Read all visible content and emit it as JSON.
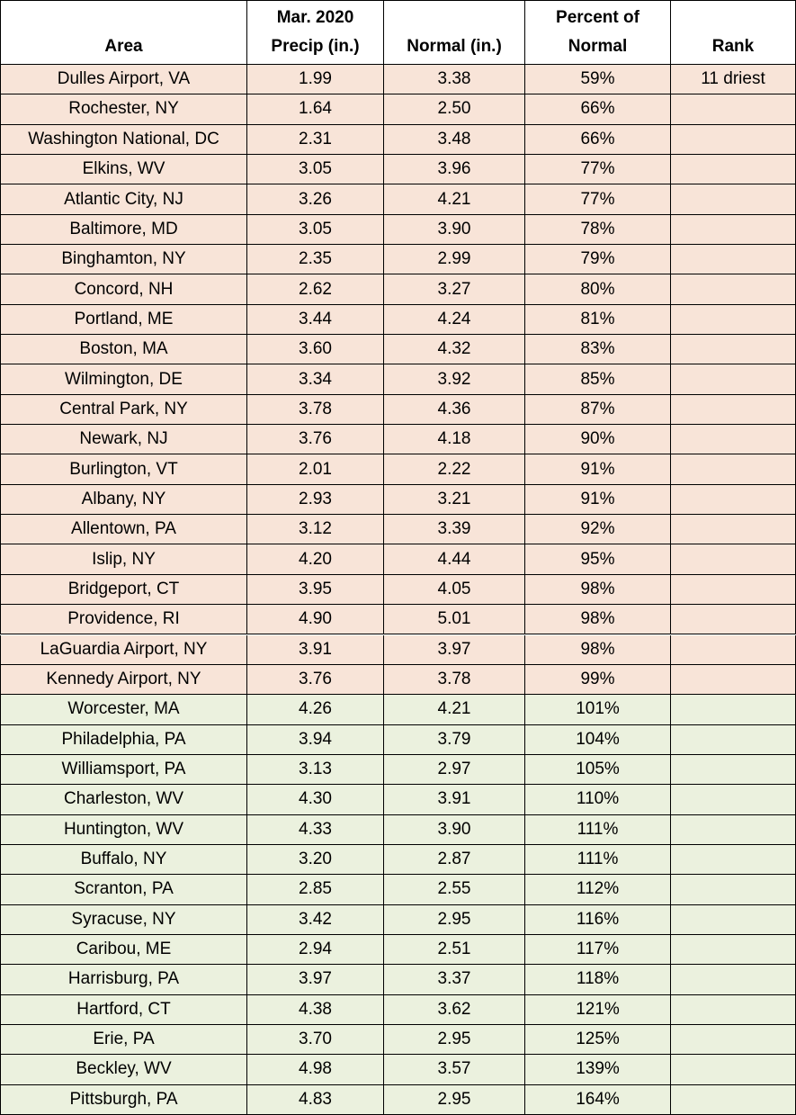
{
  "table": {
    "header": [
      [
        "Area"
      ],
      [
        "Mar. 2020",
        "Precip (in.)"
      ],
      [
        "Normal (in.)"
      ],
      [
        "Percent of",
        "Normal"
      ],
      [
        "Rank"
      ]
    ],
    "groups": [
      {
        "color": "#f8e4d8",
        "rows": [
          [
            "Dulles Airport, VA",
            "1.99",
            "3.38",
            "59%",
            "11 driest"
          ],
          [
            "Rochester, NY",
            "1.64",
            "2.50",
            "66%"
          ],
          [
            "Washington National, DC",
            "2.31",
            "3.48",
            "66%"
          ],
          [
            "Elkins, WV",
            "3.05",
            "3.96",
            "77%"
          ],
          [
            "Atlantic City, NJ",
            "3.26",
            "4.21",
            "77%"
          ],
          [
            "Baltimore, MD",
            "3.05",
            "3.90",
            "78%"
          ],
          [
            "Binghamton, NY",
            "2.35",
            "2.99",
            "79%"
          ],
          [
            "Concord, NH",
            "2.62",
            "3.27",
            "80%"
          ],
          [
            "Portland, ME",
            "3.44",
            "4.24",
            "81%"
          ],
          [
            "Boston, MA",
            "3.60",
            "4.32",
            "83%"
          ],
          [
            "Wilmington, DE",
            "3.34",
            "3.92",
            "85%"
          ],
          [
            "Central Park, NY",
            "3.78",
            "4.36",
            "87%"
          ],
          [
            "Newark, NJ",
            "3.76",
            "4.18",
            "90%"
          ],
          [
            "Burlington, VT",
            "2.01",
            "2.22",
            "91%"
          ],
          [
            "Albany, NY",
            "2.93",
            "3.21",
            "91%"
          ],
          [
            "Allentown, PA",
            "3.12",
            "3.39",
            "92%"
          ],
          [
            "Islip, NY",
            "4.20",
            "4.44",
            "95%"
          ],
          [
            "Bridgeport, CT",
            "3.95",
            "4.05",
            "98%"
          ],
          [
            "Providence, RI",
            "4.90",
            "5.01",
            "98%"
          ],
          [
            "LaGuardia Airport, NY",
            "3.91",
            "3.97",
            "98%"
          ],
          [
            "Kennedy Airport, NY",
            "3.76",
            "3.78",
            "99%"
          ]
        ]
      },
      {
        "color": "#ebf1de",
        "rows": [
          [
            "Worcester, MA",
            "4.26",
            "4.21",
            "101%"
          ],
          [
            "Philadelphia, PA",
            "3.94",
            "3.79",
            "104%"
          ],
          [
            "Williamsport, PA",
            "3.13",
            "2.97",
            "105%"
          ],
          [
            "Charleston, WV",
            "4.30",
            "3.91",
            "110%"
          ],
          [
            "Huntington, WV",
            "4.33",
            "3.90",
            "111%"
          ],
          [
            "Buffalo, NY",
            "3.20",
            "2.87",
            "111%"
          ],
          [
            "Scranton, PA",
            "2.85",
            "2.55",
            "112%"
          ],
          [
            "Syracuse, NY",
            "3.42",
            "2.95",
            "116%"
          ],
          [
            "Caribou, ME",
            "2.94",
            "2.51",
            "117%"
          ],
          [
            "Harrisburg, PA",
            "3.97",
            "3.37",
            "118%"
          ],
          [
            "Hartford, CT",
            "4.38",
            "3.62",
            "121%"
          ],
          [
            "Erie, PA",
            "3.70",
            "2.95",
            "125%"
          ],
          [
            "Beckley, WV",
            "4.98",
            "3.57",
            "139%"
          ],
          [
            "Pittsburgh, PA",
            "4.83",
            "2.95",
            "164%"
          ]
        ]
      }
    ]
  }
}
